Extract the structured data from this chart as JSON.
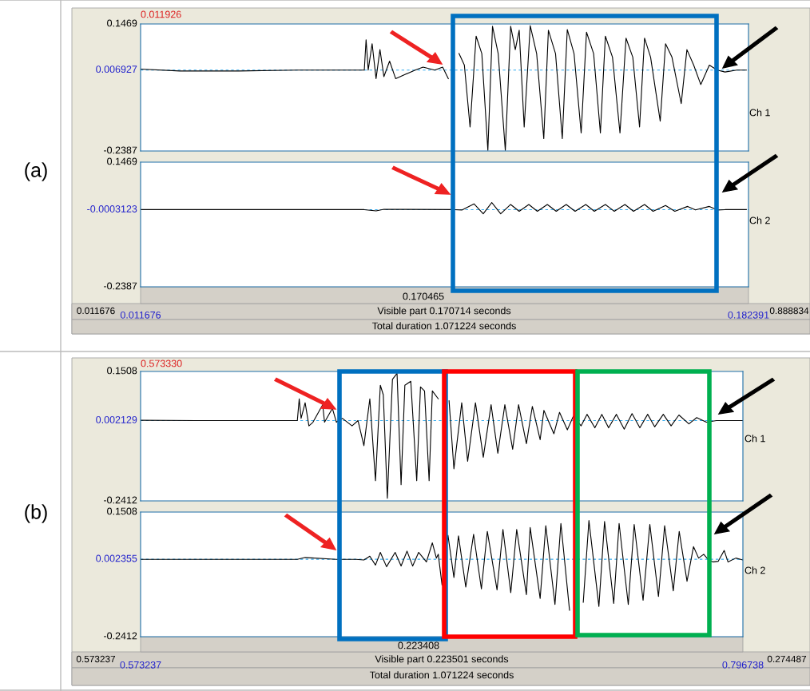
{
  "chart_data": [
    {
      "type": "line",
      "color": "#000000",
      "xlim": [
        0.011676,
        0.182391
      ],
      "ylim": [
        -0.2387,
        0.1469
      ],
      "yticks": [
        0.1469,
        0.006927,
        -0.2387
      ],
      "tick_labels": "y",
      "legend": false,
      "grid": false,
      "ref_lines": [
        {
          "axis": "y",
          "value": 0.006927,
          "color": "#33aaee",
          "line_style": "dashed"
        }
      ],
      "annotations": [
        "(a)",
        "0.011926",
        "Ch 1"
      ],
      "x": [
        0.0117,
        0.0227,
        0.0392,
        0.0557,
        0.0745,
        0.075,
        0.0756,
        0.0767,
        0.0778,
        0.0789,
        0.08,
        0.0816,
        0.0833,
        0.0888,
        0.091,
        0.0943,
        0.0965,
        0.0981,
        0.0993,
        0.1011,
        0.1026,
        0.1042,
        0.1059,
        0.1075,
        0.1092,
        0.1105,
        0.1121,
        0.1141,
        0.1156,
        0.1169,
        0.118,
        0.1194,
        0.1211,
        0.1229,
        0.1249,
        0.1262,
        0.1282,
        0.1301,
        0.1315,
        0.1334,
        0.1354,
        0.1369,
        0.1389,
        0.1408,
        0.1422,
        0.1442,
        0.1463,
        0.148,
        0.1499,
        0.1518,
        0.1532,
        0.1549,
        0.1576,
        0.1591,
        0.1609,
        0.1635,
        0.1651,
        0.167,
        0.169,
        0.1714,
        0.1736,
        0.1758,
        0.1791,
        0.1818
      ],
      "values": [
        0.01,
        0.004,
        0.004,
        0.007,
        0.007,
        0.099,
        0.007,
        0.087,
        -0.019,
        0.069,
        -0.013,
        0.034,
        -0.019,
        0.007,
        0.016,
        0.007,
        0.016,
        -0.019,
        null,
        0.057,
        0.022,
        -0.166,
        0.11,
        0.057,
        -0.237,
        0.14,
        0.057,
        -0.237,
        0.14,
        0.069,
        0.128,
        -0.166,
        0.142,
        0.057,
        -0.201,
        0.128,
        0.057,
        -0.201,
        0.13,
        0.057,
        -0.184,
        0.122,
        0.057,
        -0.184,
        0.11,
        0.046,
        -0.184,
        0.104,
        0.046,
        -0.166,
        0.104,
        0.046,
        -0.148,
        0.087,
        0.046,
        -0.095,
        0.069,
        0.022,
        -0.037,
        0.022,
        0.007,
        0.001,
        0.007,
        0.007
      ]
    },
    {
      "type": "line",
      "color": "#000000",
      "xlim": [
        0.011676,
        0.182391
      ],
      "ylim": [
        -0.2387,
        0.1469
      ],
      "xticks": [
        0.011676,
        0.182391
      ],
      "yticks": [
        0.1469,
        -0.0003123,
        -0.2387
      ],
      "legend": false,
      "grid": false,
      "ref_lines": [
        {
          "axis": "y",
          "value": -0.0003123,
          "color": "#33aaee",
          "line_style": "dashed"
        }
      ],
      "annotations": [
        "Ch 2",
        "0.170465",
        "0.011676",
        "Visible part 0.170714 seconds",
        "0.888834",
        "Total duration 1.071224 seconds"
      ],
      "x": [
        0.0117,
        0.0745,
        0.0778,
        0.08,
        0.0998,
        0.102,
        0.1053,
        0.1079,
        0.1103,
        0.1128,
        0.1156,
        0.118,
        0.1207,
        0.1231,
        0.1259,
        0.1284,
        0.1312,
        0.1337,
        0.1367,
        0.1391,
        0.1422,
        0.1447,
        0.1477,
        0.1501,
        0.1532,
        0.1556,
        0.1591,
        0.1617,
        0.1653,
        0.1675,
        0.1714,
        0.1736,
        0.1758,
        0.1791,
        0.1818
      ],
      "values": [
        0.0,
        0.0,
        -0.004,
        0.001,
        0.0,
        -0.001,
        0.018,
        -0.013,
        0.022,
        -0.013,
        0.016,
        -0.005,
        0.016,
        -0.005,
        0.016,
        -0.005,
        0.016,
        -0.005,
        0.016,
        -0.005,
        0.016,
        -0.005,
        0.016,
        -0.005,
        0.016,
        -0.005,
        0.013,
        -0.005,
        0.01,
        -0.001,
        0.01,
        -0.001,
        0.0,
        0.0,
        0.0
      ]
    },
    {
      "type": "line",
      "color": "#000000",
      "xlim": [
        0.573237,
        0.796738
      ],
      "ylim": [
        -0.2412,
        0.1508
      ],
      "yticks": [
        0.1508,
        0.002129,
        -0.2412
      ],
      "tick_labels": "y",
      "legend": false,
      "grid": false,
      "ref_lines": [
        {
          "axis": "y",
          "value": 0.002129,
          "color": "#33aaee",
          "line_style": "dashed"
        }
      ],
      "annotations": [
        "(b)",
        "0.573330",
        "Ch 1"
      ],
      "x": [
        0.5733,
        0.5936,
        0.6314,
        0.6321,
        0.6328,
        0.6343,
        0.6357,
        0.6372,
        0.6408,
        0.6415,
        0.6444,
        0.6459,
        0.6481,
        0.6517,
        0.6539,
        0.6561,
        0.6583,
        0.6604,
        0.6622,
        0.6633,
        0.6648,
        0.6667,
        0.6684,
        0.6699,
        0.6713,
        0.6735,
        0.6757,
        0.6771,
        0.6786,
        0.6803,
        0.6815,
        0.6837,
        0.6851,
        0.6877,
        0.6895,
        0.6924,
        0.6946,
        0.6975,
        0.7004,
        0.7033,
        0.7058,
        0.7084,
        0.7113,
        0.7135,
        0.7164,
        0.7186,
        0.7215,
        0.7229,
        0.7266,
        0.7287,
        0.7316,
        0.7338,
        0.7367,
        0.7389,
        0.7418,
        0.7444,
        0.7469,
        0.7498,
        0.7527,
        0.7556,
        0.7585,
        0.7614,
        0.764,
        0.7672,
        0.7701,
        0.773,
        0.7767,
        0.7796,
        0.7832,
        0.7869,
        0.7912,
        0.7967
      ],
      "values": [
        0.003,
        0.002,
        0.002,
        0.068,
        0.009,
        0.056,
        -0.014,
        -0.003,
        0.05,
        -0.003,
        0.039,
        -0.003,
        0.009,
        -0.014,
        0.002,
        -0.074,
        0.068,
        -0.18,
        0.109,
        0.08,
        -0.233,
        0.127,
        0.145,
        -0.192,
        0.109,
        0.121,
        -0.18,
        0.104,
        0.092,
        -0.18,
        0.092,
        0.068,
        null,
        0.062,
        -0.144,
        0.056,
        -0.121,
        0.056,
        -0.109,
        0.05,
        -0.097,
        0.05,
        -0.085,
        0.05,
        -0.068,
        0.045,
        -0.056,
        0.033,
        -0.038,
        0.027,
        -0.026,
        0.015,
        -0.014,
        0.021,
        -0.02,
        0.021,
        -0.02,
        0.021,
        -0.024,
        0.023,
        -0.02,
        0.021,
        -0.017,
        0.021,
        -0.014,
        0.019,
        -0.008,
        0.011,
        -0.003,
        0.002,
        0.002,
        0.002
      ]
    },
    {
      "type": "line",
      "color": "#000000",
      "xlim": [
        0.573237,
        0.796738
      ],
      "ylim": [
        -0.2412,
        0.1508
      ],
      "xticks": [
        0.573237,
        0.796738
      ],
      "yticks": [
        0.1508,
        0.002355,
        -0.2412
      ],
      "legend": false,
      "grid": false,
      "ref_lines": [
        {
          "axis": "y",
          "value": 0.002355,
          "color": "#33aaee",
          "line_style": "dashed"
        }
      ],
      "annotations": [
        "Ch 2",
        "0.223408",
        "0.573237",
        "Visible part 0.223501 seconds",
        "0.274487",
        "Total duration 1.071224 seconds"
      ],
      "x": [
        0.5733,
        0.6314,
        0.6343,
        0.6459,
        0.6532,
        0.6561,
        0.6583,
        0.6604,
        0.6622,
        0.6645,
        0.6677,
        0.6699,
        0.6721,
        0.6742,
        0.6764,
        0.6793,
        0.6815,
        0.683,
        0.6837,
        0.6851,
        0.6873,
        0.6895,
        0.6912,
        0.6939,
        0.6968,
        0.6997,
        0.7019,
        0.7055,
        0.7077,
        0.7106,
        0.7128,
        0.7164,
        0.7178,
        0.7215,
        0.7236,
        0.727,
        0.7292,
        0.7324,
        0.7346,
        0.7375,
        0.7396,
        0.7433,
        0.7454,
        0.7488,
        0.7508,
        0.7542,
        0.7564,
        0.7597,
        0.7622,
        0.7654,
        0.7677,
        0.7709,
        0.7731,
        0.776,
        0.7784,
        0.7803,
        0.7822,
        0.784,
        0.7857,
        0.7876,
        0.7898,
        0.7912,
        0.7941,
        0.7967
      ],
      "values": [
        0.002,
        0.002,
        0.008,
        0.002,
        0.002,
        0.0,
        0.012,
        -0.016,
        0.024,
        -0.021,
        0.024,
        -0.019,
        0.028,
        -0.019,
        0.024,
        -0.006,
        0.054,
        0.006,
        0.018,
        -0.079,
        0.078,
        -0.055,
        0.076,
        -0.085,
        0.081,
        -0.091,
        0.09,
        -0.094,
        0.096,
        -0.103,
        0.096,
        -0.109,
        0.102,
        -0.121,
        0.108,
        -0.14,
        0.115,
        -0.158,
        null,
        -0.133,
        0.124,
        -0.146,
        0.121,
        -0.137,
        0.115,
        -0.14,
        0.112,
        -0.127,
        0.112,
        -0.115,
        0.108,
        -0.097,
        0.09,
        -0.067,
        0.042,
        0.006,
        0.018,
        0.0,
        -0.006,
        -0.004,
        0.03,
        -0.006,
        0.006,
        0.0
      ]
    }
  ]
}
